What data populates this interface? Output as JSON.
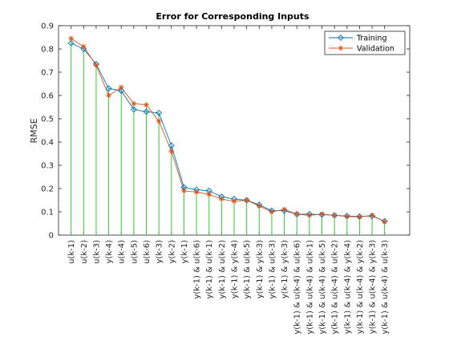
{
  "chart_data": {
    "type": "line",
    "title": "Error for Corresponding Inputs",
    "xlabel": "",
    "ylabel": "RMSE",
    "ylim": [
      0,
      0.9
    ],
    "yticks": [
      "0",
      "0.1",
      "0.2",
      "0.3",
      "0.4",
      "0.5",
      "0.6",
      "0.7",
      "0.8",
      "0.9"
    ],
    "grid": false,
    "legend_position": "top-right",
    "categories": [
      "u(k-1)",
      "u(k-2)",
      "u(k-3)",
      "y(k-4)",
      "u(k-4)",
      "u(k-5)",
      "u(k-6)",
      "y(k-3)",
      "y(k-2)",
      "y(k-1)",
      "y(k-1) & u(k-6)",
      "y(k-1) & u(k-1)",
      "y(k-1) & u(k-2)",
      "y(k-1) & y(k-4)",
      "y(k-1) & u(k-5)",
      "y(k-1) & y(k-3)",
      "y(k-1) & u(k-3)",
      "y(k-1) & y(k-3)",
      "y(k-1) & u(k-4) & u(k-6)",
      "y(k-1) & u(k-4) & u(k-1)",
      "y(k-1) & u(k-4) & u(k-5)",
      "y(k-1) & u(k-4) & u(k-2)",
      "y(k-1) & u(k-4) & y(k-4)",
      "y(k-1) & u(k-4) & y(k-2)",
      "y(k-1) & u(k-4) & y(k-3)",
      "y(k-1) & u(k-4) & u(k-3)"
    ],
    "series": [
      {
        "name": "Training",
        "color": "#0072BD",
        "marker": "diamond",
        "values": [
          0.825,
          0.8,
          0.735,
          0.63,
          0.62,
          0.54,
          0.53,
          0.525,
          0.385,
          0.205,
          0.195,
          0.19,
          0.165,
          0.155,
          0.15,
          0.13,
          0.105,
          0.105,
          0.09,
          0.09,
          0.088,
          0.085,
          0.082,
          0.08,
          0.082,
          0.06
        ]
      },
      {
        "name": "Validation",
        "color": "#D95319",
        "marker": "asterisk",
        "values": [
          0.845,
          0.81,
          0.73,
          0.6,
          0.635,
          0.565,
          0.56,
          0.49,
          0.36,
          0.19,
          0.185,
          0.175,
          0.155,
          0.145,
          0.15,
          0.125,
          0.1,
          0.11,
          0.09,
          0.085,
          0.09,
          0.085,
          0.08,
          0.078,
          0.085,
          0.058
        ]
      }
    ],
    "stems": {
      "color": "#33CC33",
      "source_series": "Validation"
    }
  }
}
